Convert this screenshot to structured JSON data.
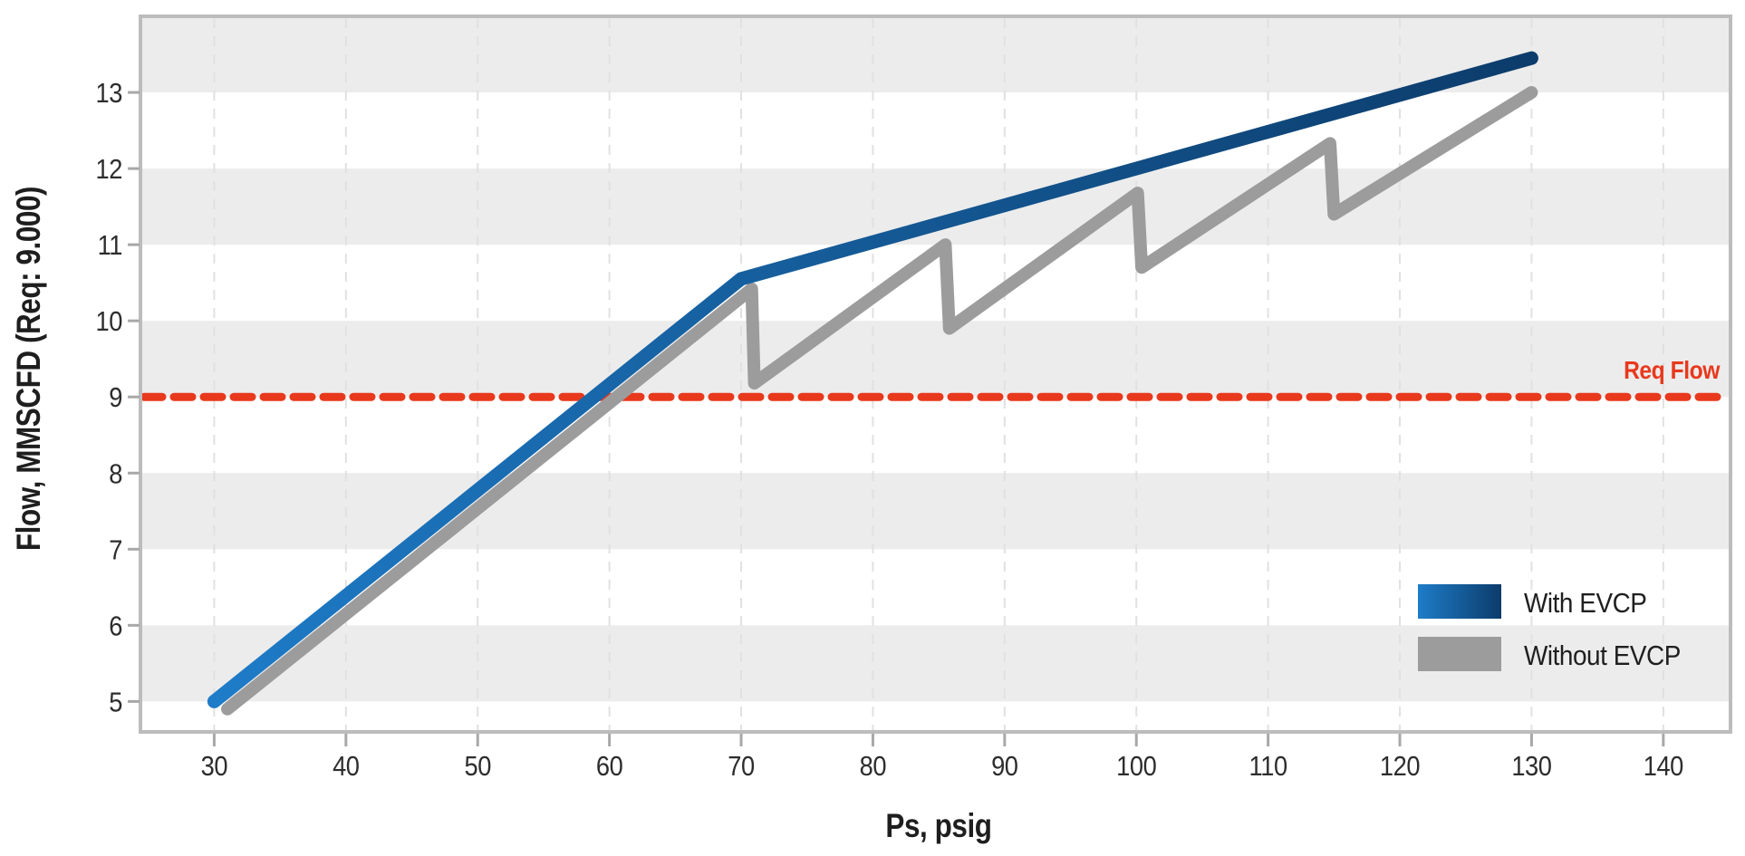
{
  "chart_data": {
    "type": "line",
    "title": "",
    "xlabel": "Ps, psig",
    "ylabel": "Flow, MMSCFD (Req: 9.000)",
    "xlim": [
      24.4,
      145.1
    ],
    "ylim": [
      4.6,
      14.0
    ],
    "x_ticks": [
      30,
      40,
      50,
      60,
      70,
      80,
      90,
      100,
      110,
      120,
      130,
      140
    ],
    "y_ticks": [
      5,
      6,
      7,
      8,
      9,
      10,
      11,
      12,
      13
    ],
    "grid": "vertical-dashed",
    "gray_band_starts": [
      5,
      7,
      9,
      11,
      13
    ],
    "legend_position": "lower-right",
    "series": [
      {
        "name": "With EVCP",
        "gradient": [
          "#1e7cc8",
          "#0c3c6b"
        ],
        "line_width": 15,
        "points": [
          [
            30,
            5.0
          ],
          [
            70,
            10.55
          ],
          [
            130,
            13.45
          ]
        ]
      },
      {
        "name": "Without EVCP",
        "color": "#9c9c9c",
        "line_width": 14,
        "points": [
          [
            31,
            4.9
          ],
          [
            70.8,
            10.42
          ],
          [
            71,
            9.18
          ],
          [
            85.5,
            11.0
          ],
          [
            85.8,
            9.9
          ],
          [
            100.1,
            11.68
          ],
          [
            100.4,
            10.7
          ],
          [
            114.7,
            12.33
          ],
          [
            115,
            11.4
          ],
          [
            130,
            13.0
          ]
        ]
      }
    ],
    "ref_line": {
      "label": "Req Flow",
      "value": 9.0,
      "color": "#e8391d",
      "style": "dashed"
    }
  },
  "legend": {
    "items": [
      {
        "label": "With EVCP"
      },
      {
        "label": "Without EVCP"
      }
    ]
  },
  "colors": {
    "band": "#ececec",
    "spine": "#bcbcbc",
    "gridline": "#e1e1e1",
    "tick_text": "#2d2d2d",
    "title_text": "#1e1e1e"
  }
}
